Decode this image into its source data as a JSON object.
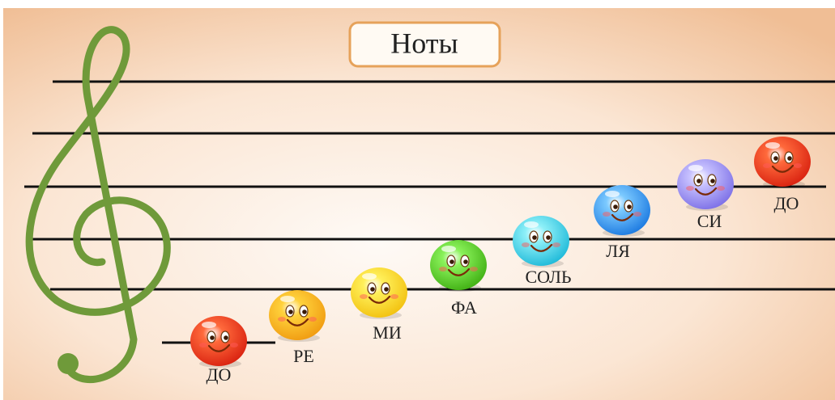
{
  "title": "Ноты",
  "notes": [
    {
      "label": "ДО"
    },
    {
      "label": "РЕ"
    },
    {
      "label": "МИ"
    },
    {
      "label": "ФА"
    },
    {
      "label": "СОЛЬ"
    },
    {
      "label": "ЛЯ"
    },
    {
      "label": "СИ"
    },
    {
      "label": "ДО"
    }
  ]
}
